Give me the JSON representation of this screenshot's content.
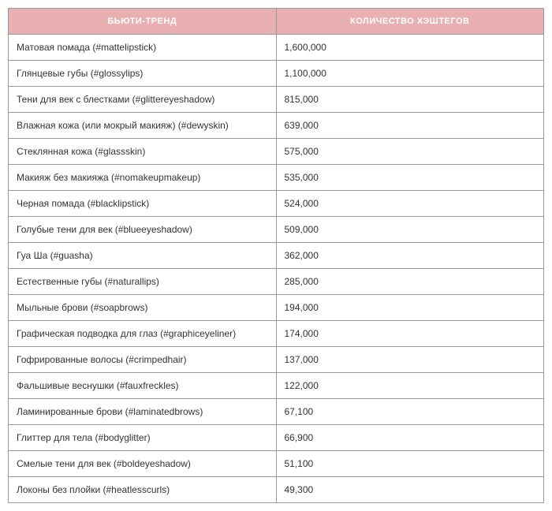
{
  "table": {
    "type": "table",
    "header_bg_color": "#e8b0b0",
    "header_text_color": "#ffffff",
    "border_color": "#999999",
    "cell_text_color": "#333333",
    "header_fontsize": 11,
    "cell_fontsize": 12,
    "columns": [
      "БЬЮТИ-ТРЕНД",
      "КОЛИЧЕСТВО ХЭШТЕГОВ"
    ],
    "column_widths": [
      "50%",
      "50%"
    ],
    "rows": [
      [
        "Матовая помада (#mattelipstick)",
        "1,600,000"
      ],
      [
        "Глянцевые губы (#glossylips)",
        "1,100,000"
      ],
      [
        "Тени для век с блестками (#glittereyeshadow)",
        "815,000"
      ],
      [
        "Влажная кожа (или мокрый макияж) (#dewyskin)",
        "639,000"
      ],
      [
        "Стеклянная кожа (#glassskin)",
        "575,000"
      ],
      [
        "Макияж без макияжа (#nomakeupmakeup)",
        "535,000"
      ],
      [
        "Черная помада (#blacklipstick)",
        "524,000"
      ],
      [
        "Голубые тени для век (#blueeyeshadow)",
        "509,000"
      ],
      [
        "Гуа Ша (#guasha)",
        "362,000"
      ],
      [
        "Естественные губы (#naturallips)",
        "285,000"
      ],
      [
        "Мыльные брови (#soapbrows)",
        "194,000"
      ],
      [
        "Графическая подводка для глаз (#graphiceyeliner)",
        "174,000"
      ],
      [
        "Гофрированные волосы (#crimpedhair)",
        "137,000"
      ],
      [
        "Фальшивые веснушки (#fauxfreckles)",
        "122,000"
      ],
      [
        "Ламинированные брови (#laminatedbrows)",
        "67,100"
      ],
      [
        "Глиттер для тела (#bodyglitter)",
        "66,900"
      ],
      [
        "Смелые тени для век (#boldeyeshadow)",
        "51,100"
      ],
      [
        "Локоны без плойки (#heatlesscurls)",
        "49,300"
      ]
    ]
  }
}
